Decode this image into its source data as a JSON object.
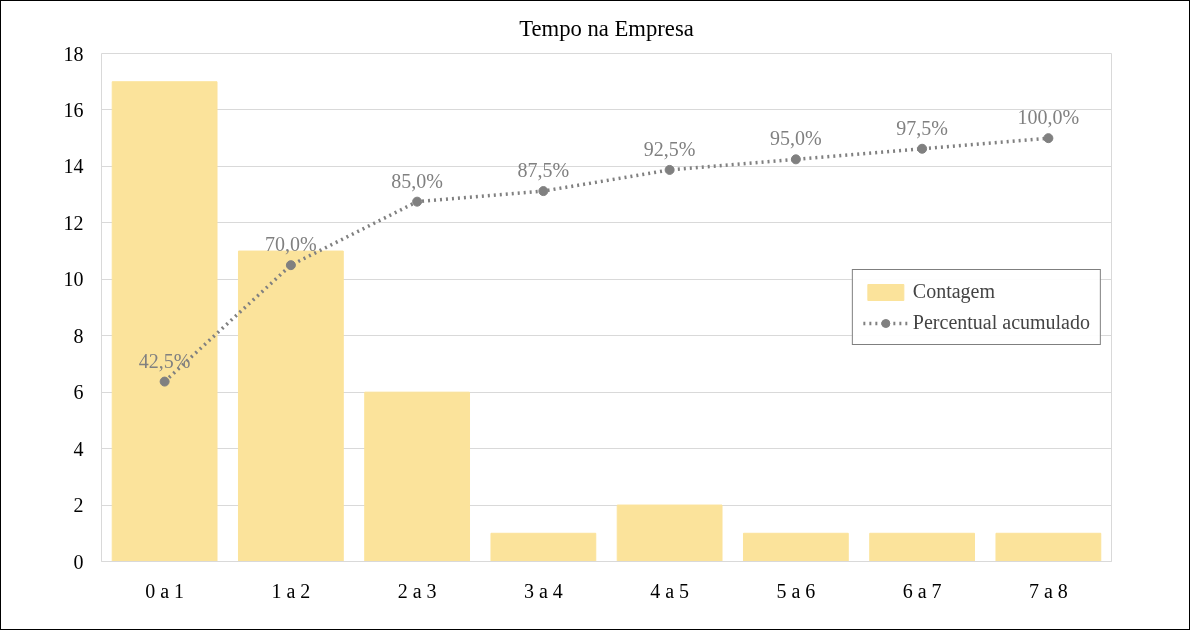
{
  "chart_data": {
    "type": "bar",
    "title": "Tempo na Empresa",
    "categories": [
      "0 a 1",
      "1 a 2",
      "2 a 3",
      "3 a 4",
      "4 a 5",
      "5 a 6",
      "6 a 7",
      "7 a 8"
    ],
    "series": [
      {
        "name": "Contagem",
        "color": "#fbe39b",
        "values": [
          17,
          11,
          6,
          1,
          2,
          1,
          1,
          1
        ]
      },
      {
        "name": "Percentual acumulado",
        "type": "line",
        "axis": "y2",
        "color": "#808080",
        "values": [
          42.5,
          70,
          85,
          87.5,
          92.5,
          95,
          97.5,
          100
        ],
        "value_labels": [
          "42,5%",
          "70,0%",
          "85,0%",
          "87,5%",
          "92,5%",
          "95,0%",
          "97,5%",
          "100,0%"
        ]
      }
    ],
    "ylim": [
      0,
      18
    ],
    "yticks": [
      0,
      2,
      4,
      6,
      8,
      10,
      12,
      14,
      16,
      18
    ],
    "y2lim": [
      0,
      120
    ],
    "grid": "y",
    "legend": "right",
    "marker": "circle",
    "line_style": "dotted"
  }
}
